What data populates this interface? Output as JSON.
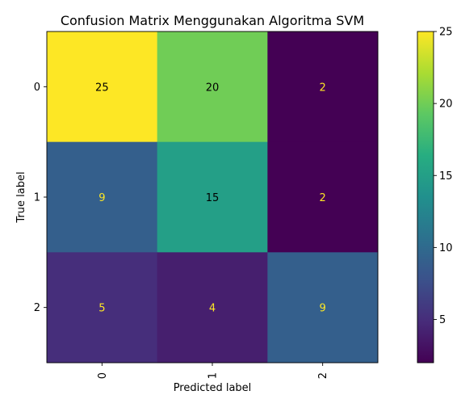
{
  "chart_data": {
    "type": "heatmap",
    "title": "Confusion Matrix Menggunakan Algoritma SVM",
    "xlabel": "Predicted label",
    "ylabel": "True label",
    "x_tick_labels": [
      "0",
      "1",
      "2"
    ],
    "y_tick_labels": [
      "0",
      "1",
      "2"
    ],
    "matrix": [
      [
        25,
        20,
        2
      ],
      [
        9,
        15,
        2
      ],
      [
        5,
        4,
        9
      ]
    ],
    "colormap": "viridis",
    "colorbar": {
      "range": [
        2,
        25
      ],
      "ticks": [
        5,
        10,
        15,
        20,
        25
      ],
      "tick_labels": [
        "5",
        "10",
        "15",
        "20",
        "25"
      ]
    },
    "grid": false,
    "colors": {
      "dark_text": "#000000",
      "light_text": "#fde725"
    }
  }
}
